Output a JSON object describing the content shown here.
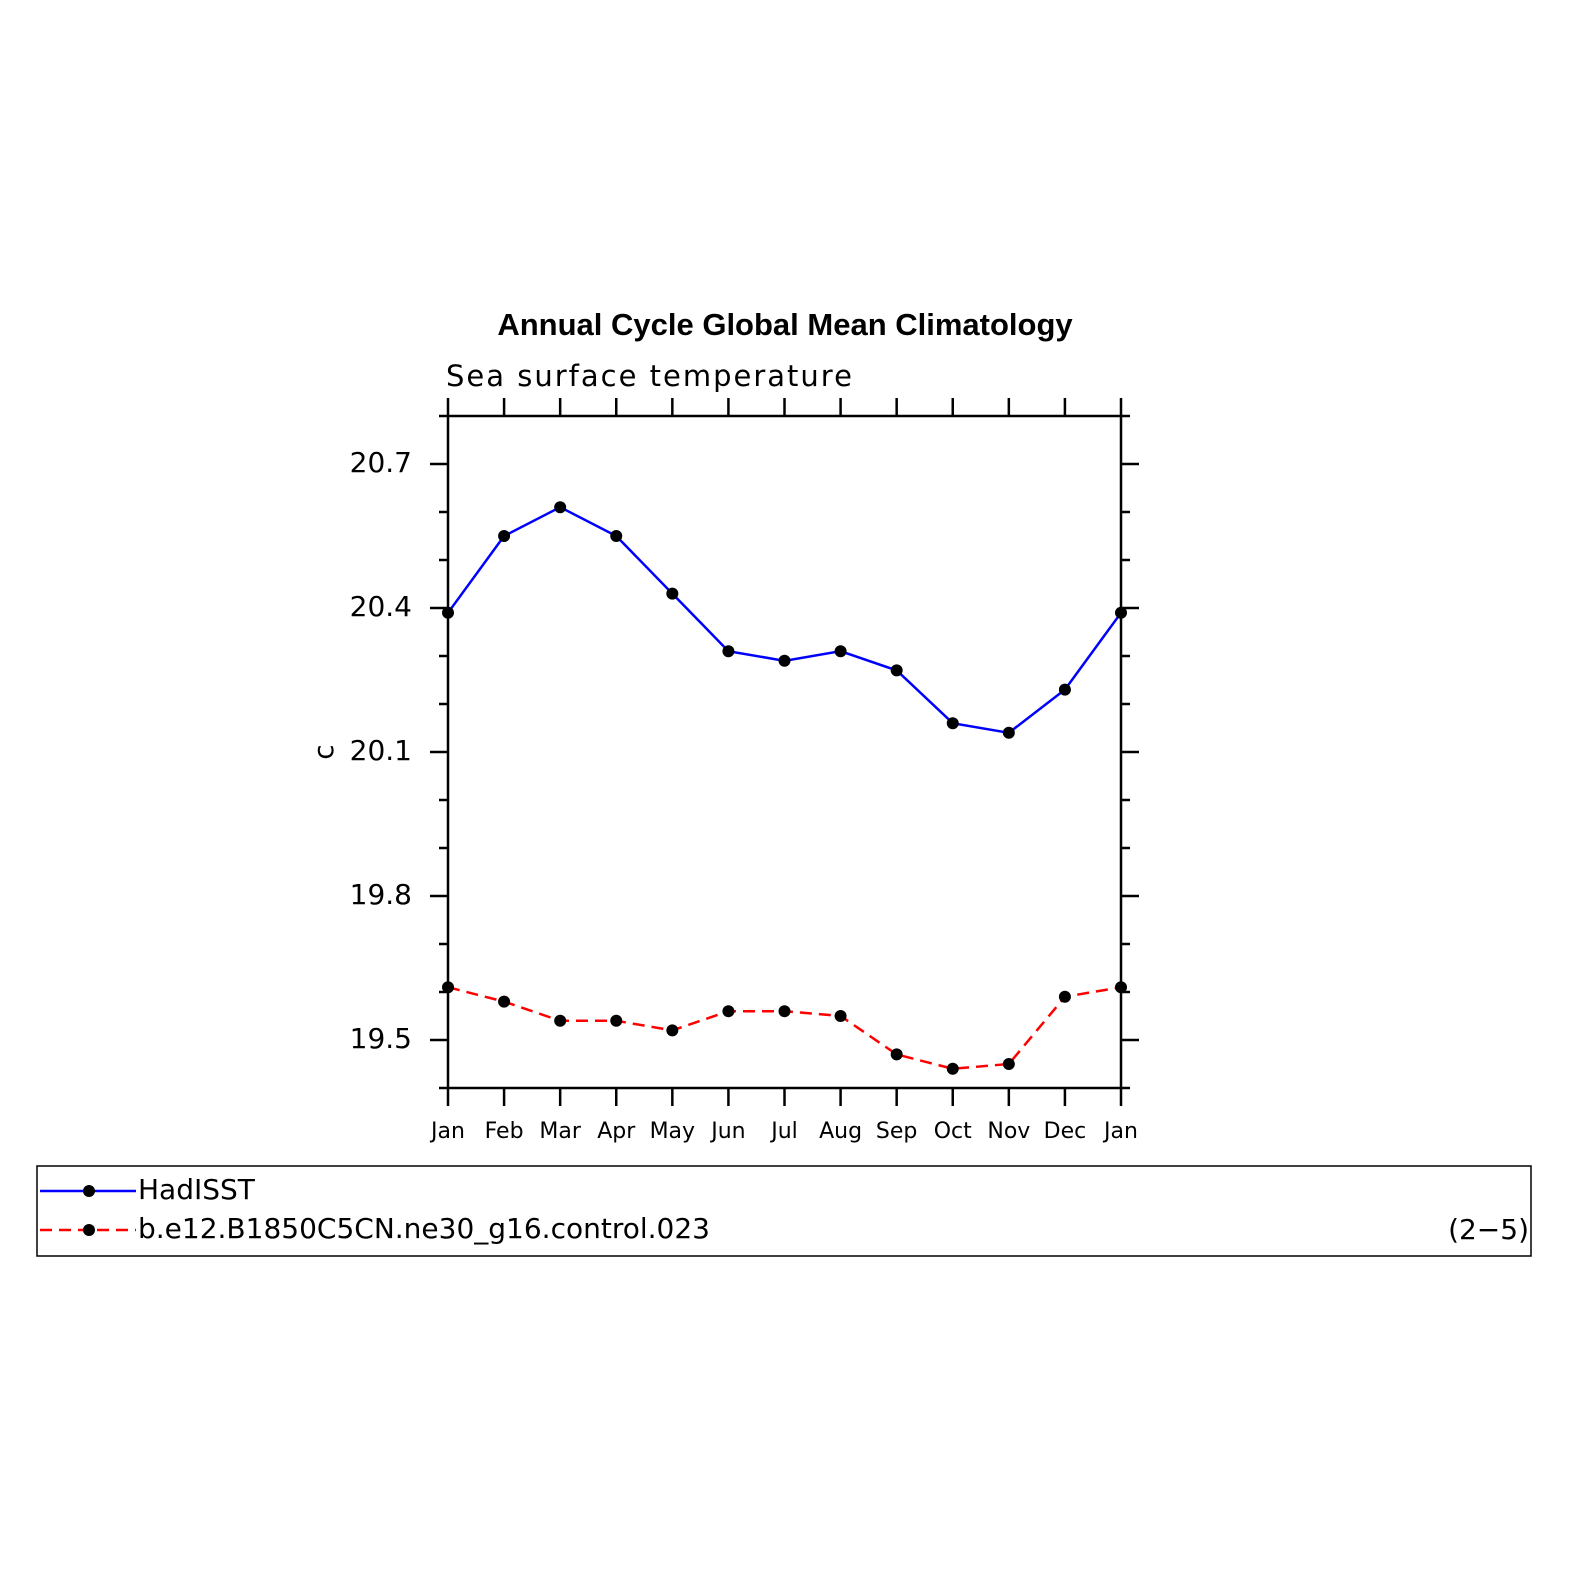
{
  "chart_data": {
    "type": "line",
    "title": "Annual Cycle Global Mean Climatology",
    "subtitle": "Sea surface temperature",
    "y_label": "c",
    "panel_label": "(2−5)",
    "categories": [
      "Jan",
      "Feb",
      "Mar",
      "Apr",
      "May",
      "Jun",
      "Jul",
      "Aug",
      "Sep",
      "Oct",
      "Nov",
      "Dec",
      "Jan"
    ],
    "series": [
      {
        "name": "HadISST",
        "color": "#0000ff",
        "dash": false,
        "values": [
          20.39,
          20.55,
          20.61,
          20.55,
          20.43,
          20.31,
          20.29,
          20.31,
          20.27,
          20.16,
          20.14,
          20.23,
          20.39
        ]
      },
      {
        "name": "b.e12.B1850C5CN.ne30_g16.control.023",
        "color": "#ff0000",
        "dash": true,
        "values": [
          19.61,
          19.58,
          19.54,
          19.54,
          19.52,
          19.56,
          19.56,
          19.55,
          19.47,
          19.44,
          19.45,
          19.59,
          19.61
        ]
      }
    ],
    "ylim": [
      19.4,
      20.8
    ],
    "yticks": [
      19.5,
      19.8,
      20.1,
      20.4,
      20.7
    ],
    "yminorticks": [
      19.4,
      19.6,
      19.7,
      19.9,
      20.0,
      20.2,
      20.3,
      20.5,
      20.6,
      20.8
    ],
    "marker_color": "#000000"
  }
}
